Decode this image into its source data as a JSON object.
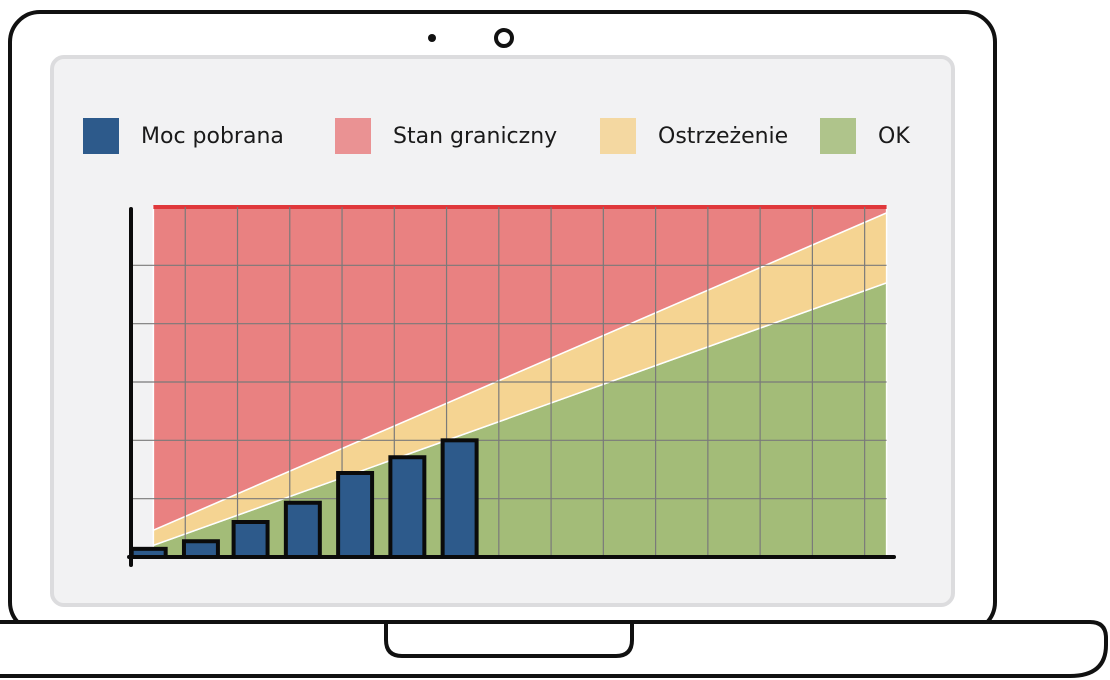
{
  "chart_data": {
    "type": "bar",
    "legend": "top",
    "grid": true,
    "xlim": [
      0,
      14.6
    ],
    "ylim": [
      0,
      6
    ],
    "xticks": [
      1,
      2,
      3,
      4,
      5,
      6,
      7,
      8,
      9,
      10,
      11,
      12,
      13,
      14
    ],
    "yticks": [
      1,
      2,
      3,
      4,
      5
    ],
    "series": [
      {
        "name": "Moc pobrana",
        "type": "bar",
        "color": "#2d5a8b",
        "x": [
          0.3,
          1.3,
          2.25,
          3.25,
          4.25,
          5.25,
          6.25
        ],
        "values": [
          0.14,
          0.27,
          0.6,
          0.93,
          1.44,
          1.71,
          2.0
        ]
      },
      {
        "name": "Stan graniczny",
        "type": "area",
        "color": "#e98181",
        "x": [
          0.39,
          14.42
        ],
        "values": [
          5.54,
          0.1
        ]
      },
      {
        "name": "Ostrzeżenie",
        "type": "area",
        "color": "#f5d492",
        "x": [
          0.39,
          14.42
        ],
        "values": [
          0.26,
          1.2
        ]
      },
      {
        "name": "OK",
        "type": "area",
        "color": "#a3bc78",
        "x": [
          0.39,
          14.42
        ],
        "values": [
          0.2,
          4.7
        ]
      }
    ]
  }
}
